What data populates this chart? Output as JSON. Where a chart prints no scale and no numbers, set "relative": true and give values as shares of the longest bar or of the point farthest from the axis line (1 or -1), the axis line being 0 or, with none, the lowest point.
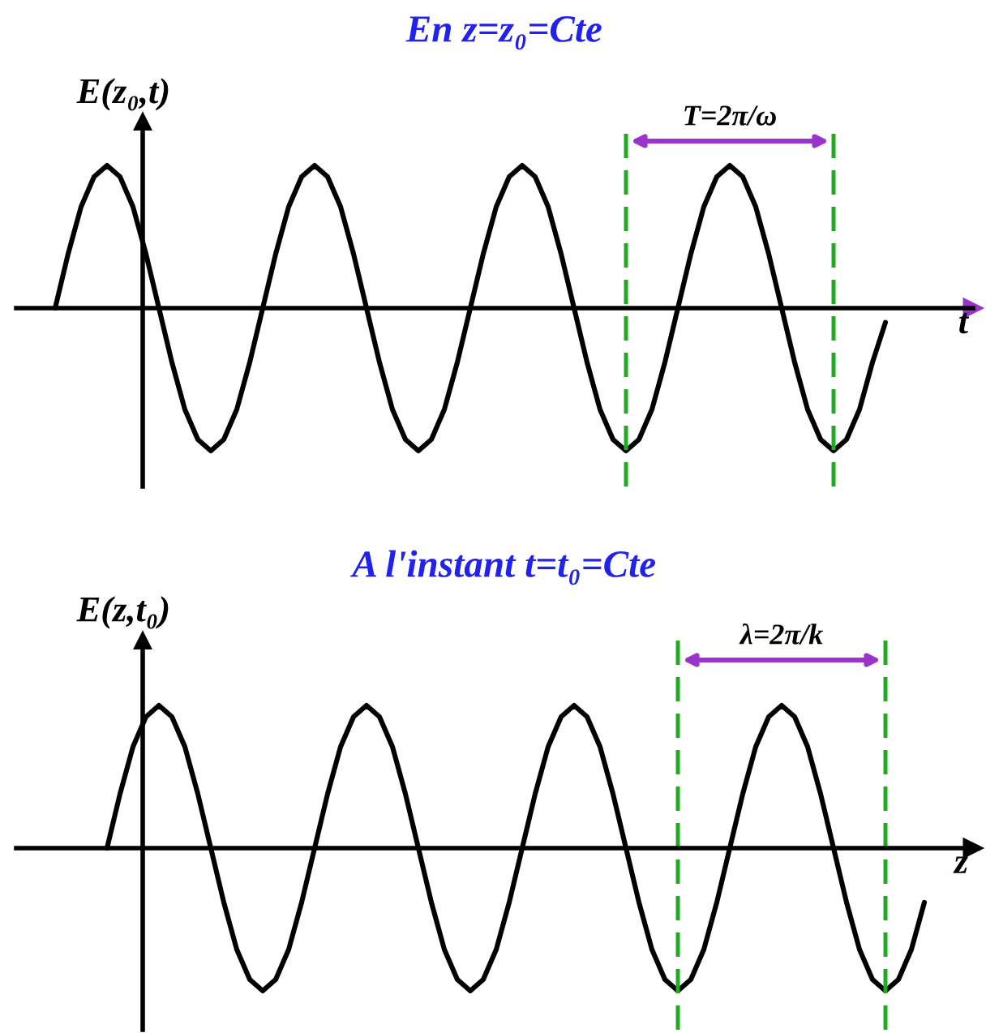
{
  "chart_data": [
    {
      "type": "line",
      "relative": true,
      "title": "En z=z₀=Cte",
      "ylabel": "E(z₀,t)",
      "xlabel": "t",
      "categories": [
        null,
        null,
        null,
        null,
        null,
        null,
        null,
        null,
        null,
        null,
        null,
        null,
        null,
        null,
        null,
        null,
        null,
        null,
        null,
        null,
        null,
        null,
        null,
        null,
        null,
        null,
        null,
        null,
        null,
        null,
        null,
        null,
        null,
        null,
        null,
        null,
        null,
        null,
        null,
        null,
        null,
        null,
        null,
        null,
        null,
        null,
        null,
        null,
        null,
        null,
        null,
        null,
        null,
        null,
        null,
        null,
        null,
        null,
        null,
        null,
        null,
        null,
        null,
        null,
        null,
        null,
        null,
        null,
        null,
        null,
        null,
        null,
        null,
        null
      ],
      "series": [
        {
          "color": "#000000",
          "values": [
            null,
            null,
            null,
            0,
            0.38,
            0.71,
            0.92,
            1,
            0.92,
            0.71,
            0.38,
            0,
            -0.38,
            -0.71,
            -0.92,
            -1,
            -0.92,
            -0.71,
            -0.38,
            0,
            0.38,
            0.71,
            0.92,
            1,
            0.92,
            0.71,
            0.38,
            0,
            -0.38,
            -0.71,
            -0.92,
            -1,
            -0.92,
            -0.71,
            -0.38,
            0,
            0.38,
            0.71,
            0.92,
            1,
            0.92,
            0.71,
            0.38,
            0,
            -0.38,
            -0.71,
            -0.92,
            -1,
            -0.92,
            -0.71,
            -0.38,
            0,
            0.38,
            0.71,
            0.92,
            1,
            0.92,
            0.71,
            0.38,
            0,
            -0.38,
            -0.71,
            -0.92,
            -1,
            -0.92,
            -0.71,
            -0.38,
            -0.1,
            null,
            null,
            null,
            null,
            null,
            null
          ]
        }
      ],
      "annotations": [
        "T=2π/ω"
      ]
    },
    {
      "type": "line",
      "relative": true,
      "title": "A l'instant t=t₀=Cte",
      "ylabel": "E(z,t₀)",
      "xlabel": "z",
      "categories": [
        null,
        null,
        null,
        null,
        null,
        null,
        null,
        null,
        null,
        null,
        null,
        null,
        null,
        null,
        null,
        null,
        null,
        null,
        null,
        null,
        null,
        null,
        null,
        null,
        null,
        null,
        null,
        null,
        null,
        null,
        null,
        null,
        null,
        null,
        null,
        null,
        null,
        null,
        null,
        null,
        null,
        null,
        null,
        null,
        null,
        null,
        null,
        null,
        null,
        null,
        null,
        null,
        null,
        null,
        null,
        null,
        null,
        null,
        null,
        null,
        null,
        null,
        null,
        null,
        null,
        null,
        null,
        null,
        null,
        null,
        null,
        null,
        null,
        null
      ],
      "series": [
        {
          "color": "#000000",
          "values": [
            null,
            null,
            null,
            null,
            null,
            null,
            null,
            0,
            0.38,
            0.71,
            0.92,
            1,
            0.92,
            0.71,
            0.38,
            0,
            -0.38,
            -0.71,
            -0.92,
            -1,
            -0.92,
            -0.71,
            -0.38,
            0,
            0.38,
            0.71,
            0.92,
            1,
            0.92,
            0.71,
            0.38,
            0,
            -0.38,
            -0.71,
            -0.92,
            -1,
            -0.92,
            -0.71,
            -0.38,
            0,
            0.38,
            0.71,
            0.92,
            1,
            0.92,
            0.71,
            0.38,
            0,
            -0.38,
            -0.71,
            -0.92,
            -1,
            -0.92,
            -0.71,
            -0.38,
            0,
            0.38,
            0.71,
            0.92,
            1,
            0.92,
            0.71,
            0.38,
            0,
            -0.38,
            -0.71,
            -0.92,
            -1,
            -0.92,
            -0.71,
            -0.38,
            null,
            null,
            null
          ]
        }
      ],
      "annotations": [
        "λ=2π/k"
      ]
    }
  ]
}
